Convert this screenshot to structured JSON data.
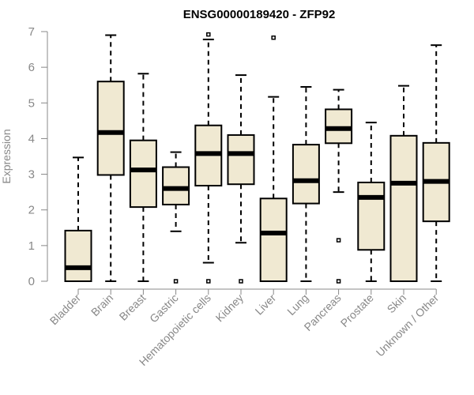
{
  "chart_data": {
    "type": "boxplot",
    "title": "ENSG00000189420 - ZFP92",
    "ylabel": "Expression",
    "xlabel": "",
    "ylim": [
      0,
      7
    ],
    "yticks": [
      "0",
      "1",
      "2",
      "3",
      "4",
      "5",
      "6",
      "7"
    ],
    "grid": false,
    "box_fill": "#f0e9d2",
    "categories": [
      "Bladder",
      "Brain",
      "Breast",
      "Gastric",
      "Hematopoietic cells",
      "Kidney",
      "Liver",
      "Lung",
      "Pancreas",
      "Prostate",
      "Skin",
      "Unknown / Other"
    ],
    "boxes": [
      {
        "min": 0,
        "q1": 0,
        "median": 0.38,
        "q3": 1.42,
        "max": 3.47,
        "outliers": []
      },
      {
        "min": 0,
        "q1": 2.98,
        "median": 4.17,
        "q3": 5.6,
        "max": 6.9,
        "outliers": []
      },
      {
        "min": 0,
        "q1": 2.08,
        "median": 3.12,
        "q3": 3.95,
        "max": 5.82,
        "outliers": []
      },
      {
        "min": 1.4,
        "q1": 2.15,
        "median": 2.6,
        "q3": 3.2,
        "max": 3.62,
        "outliers": [
          0
        ]
      },
      {
        "min": 0.52,
        "q1": 2.68,
        "median": 3.58,
        "q3": 4.37,
        "max": 6.78,
        "outliers": [
          0,
          6.92
        ]
      },
      {
        "min": 1.08,
        "q1": 2.72,
        "median": 3.58,
        "q3": 4.1,
        "max": 5.78,
        "outliers": [
          0
        ]
      },
      {
        "min": 0,
        "q1": 0,
        "median": 1.35,
        "q3": 2.32,
        "max": 5.17,
        "outliers": [
          6.83
        ]
      },
      {
        "min": 0,
        "q1": 2.18,
        "median": 2.82,
        "q3": 3.83,
        "max": 5.45,
        "outliers": []
      },
      {
        "min": 2.5,
        "q1": 3.87,
        "median": 4.28,
        "q3": 4.82,
        "max": 5.37,
        "outliers": [
          0,
          1.15
        ]
      },
      {
        "min": 0,
        "q1": 0.88,
        "median": 2.35,
        "q3": 2.77,
        "max": 4.45,
        "outliers": []
      },
      {
        "min": 0,
        "q1": 0,
        "median": 2.75,
        "q3": 4.08,
        "max": 5.48,
        "outliers": []
      },
      {
        "min": 0,
        "q1": 1.68,
        "median": 2.8,
        "q3": 3.88,
        "max": 6.62,
        "outliers": []
      }
    ]
  }
}
